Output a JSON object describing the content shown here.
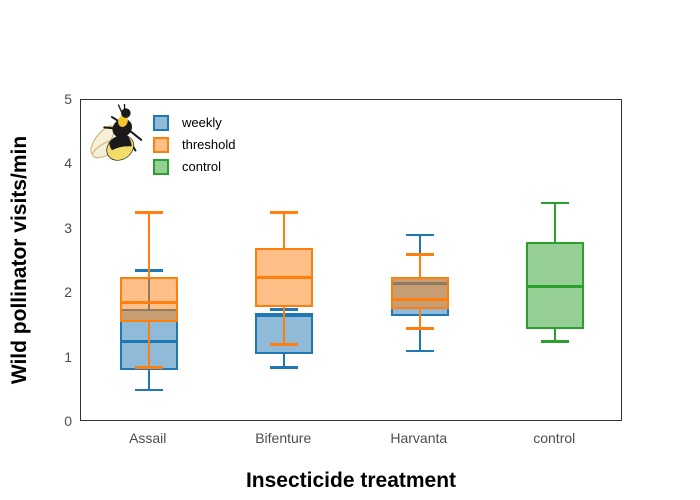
{
  "figure": {
    "background": "#ffffff",
    "frame_color": "#333333",
    "tick_label_color": "#4d4d4d"
  },
  "chart_data": {
    "type": "boxplot",
    "title": "",
    "xlabel": "Insecticide treatment",
    "ylabel": "Wild pollinator visits/min",
    "ylim": [
      0,
      5
    ],
    "yticks": [
      "0",
      "1",
      "2",
      "3",
      "4",
      "5"
    ],
    "grid": "off",
    "categories": [
      "Assail",
      "Bifenture",
      "Harvanta",
      "control"
    ],
    "legend": {
      "position": "top-left-inside",
      "items": [
        {
          "label": "weekly",
          "stroke": "#1f77b4",
          "fill": "rgba(31,119,180,0.5)"
        },
        {
          "label": "threshold",
          "stroke": "#ff7f0e",
          "fill": "rgba(255,127,14,0.5)"
        },
        {
          "label": "control",
          "stroke": "#2ca02c",
          "fill": "rgba(44,160,44,0.5)"
        }
      ]
    },
    "series": [
      {
        "name": "weekly",
        "stroke": "#1f77b4",
        "fill": "rgba(31,119,180,0.5)",
        "boxes": [
          {
            "category": "Assail",
            "low": 0.5,
            "q1": 0.8,
            "median": 1.25,
            "q3": 1.75,
            "high": 2.35
          },
          {
            "category": "Bifenture",
            "low": 0.85,
            "q1": 1.05,
            "median": 1.65,
            "q3": 1.7,
            "high": 1.75
          },
          {
            "category": "Harvanta",
            "low": 1.1,
            "q1": 1.65,
            "median": 2.15,
            "q3": 2.25,
            "high": 2.9
          },
          null
        ]
      },
      {
        "name": "threshold",
        "stroke": "#ff7f0e",
        "fill": "rgba(255,127,14,0.5)",
        "boxes": [
          {
            "category": "Assail",
            "low": 0.85,
            "q1": 1.55,
            "median": 1.85,
            "q3": 2.25,
            "high": 3.25
          },
          {
            "category": "Bifenture",
            "low": 1.2,
            "q1": 1.78,
            "median": 2.25,
            "q3": 2.7,
            "high": 3.25
          },
          {
            "category": "Harvanta",
            "low": 1.45,
            "q1": 1.75,
            "median": 1.9,
            "q3": 2.25,
            "high": 2.6
          },
          null
        ]
      },
      {
        "name": "control",
        "stroke": "#2ca02c",
        "fill": "rgba(44,160,44,0.5)",
        "boxes": [
          null,
          null,
          null,
          {
            "category": "control",
            "low": 1.25,
            "q1": 1.45,
            "median": 2.1,
            "q3": 2.8,
            "high": 3.4
          }
        ]
      }
    ],
    "annotations": {
      "bee_image": "bumblebee-illustration"
    }
  }
}
